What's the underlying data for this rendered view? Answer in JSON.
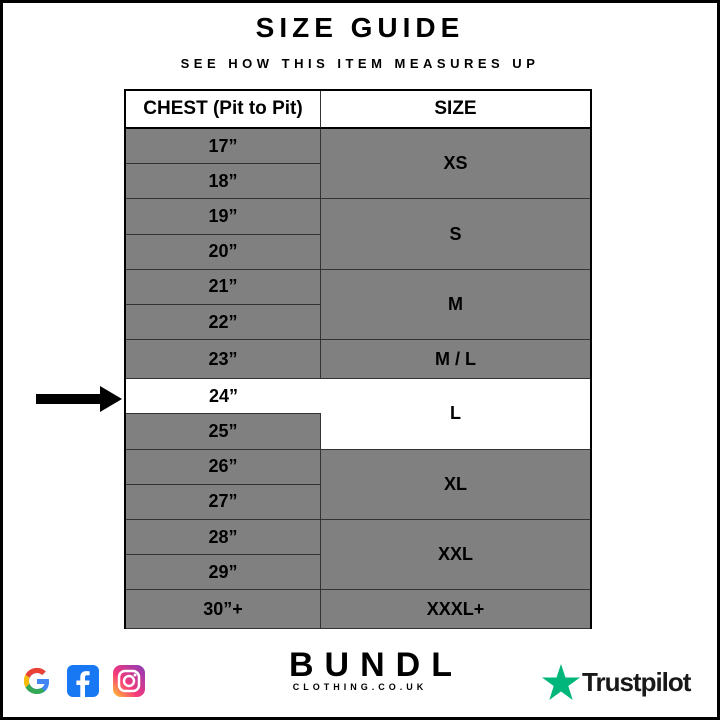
{
  "title": "SIZE GUIDE",
  "subtitle": "SEE HOW THIS ITEM MEASURES UP",
  "table": {
    "headers": [
      "CHEST (Pit to Pit)",
      "SIZE"
    ],
    "chest": [
      "17”",
      "18”",
      "19”",
      "20”",
      "21”",
      "22”",
      "23”",
      "24”",
      "25”",
      "26”",
      "27”",
      "28”",
      "29”",
      "30”+"
    ],
    "sizes": [
      {
        "label": "XS",
        "rows": 2
      },
      {
        "label": "S",
        "rows": 2
      },
      {
        "label": "M",
        "rows": 2
      },
      {
        "label": "M / L",
        "rows": 1
      },
      {
        "label": "L",
        "rows": 2
      },
      {
        "label": "XL",
        "rows": 2
      },
      {
        "label": "XXL",
        "rows": 2
      },
      {
        "label": "XXXL+",
        "rows": 1
      }
    ],
    "highlighted_chest": "24”",
    "highlighted_size": "L"
  },
  "indicator_icon": "arrow-right-icon",
  "brand": {
    "name": "BUNDL",
    "domain": "CLOTHING.CO.UK"
  },
  "social_icons": [
    "google-icon",
    "facebook-icon",
    "instagram-icon"
  ],
  "trustpilot": {
    "label": "Trustpilot",
    "color": "#00b67a"
  },
  "colors": {
    "row": "#808080",
    "highlight": "#ffffff"
  }
}
